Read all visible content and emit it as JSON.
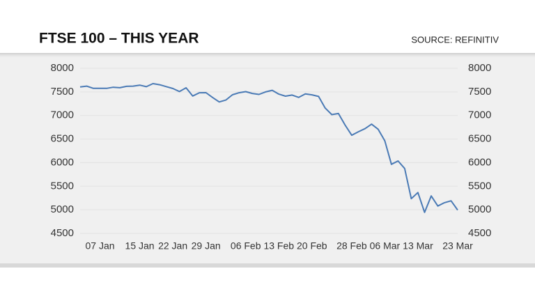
{
  "chart_data": {
    "type": "line",
    "title": "FTSE 100 – THIS YEAR",
    "source": "SOURCE: REFINITIV",
    "categories": [
      null,
      null,
      null,
      "07 Jan",
      null,
      null,
      null,
      null,
      null,
      "15 Jan",
      null,
      null,
      null,
      null,
      "22 Jan",
      null,
      null,
      null,
      null,
      "29 Jan",
      null,
      null,
      null,
      null,
      null,
      "06 Feb",
      null,
      null,
      null,
      null,
      "13 Feb",
      null,
      null,
      null,
      null,
      "20 Feb",
      null,
      null,
      null,
      null,
      null,
      "28 Feb",
      null,
      null,
      null,
      null,
      "06 Mar",
      null,
      null,
      null,
      null,
      "13 Mar",
      null,
      null,
      null,
      null,
      null,
      "23 Mar"
    ],
    "series": [
      {
        "name": "FTSE 100",
        "color": "#4a7ab5",
        "values": [
          7604,
          7622,
          7575,
          7574,
          7575,
          7598,
          7588,
          7617,
          7622,
          7642,
          7610,
          7675,
          7651,
          7611,
          7571,
          7507,
          7586,
          7412,
          7481,
          7483,
          7381,
          7286,
          7326,
          7439,
          7482,
          7505,
          7467,
          7446,
          7500,
          7534,
          7452,
          7409,
          7433,
          7382,
          7457,
          7437,
          7404,
          7157,
          7018,
          7042,
          6796,
          6581,
          6654,
          6719,
          6816,
          6706,
          6463,
          5965,
          6036,
          5876,
          5237,
          5367,
          4946,
          5294,
          5080,
          5151,
          5191,
          4994
        ]
      }
    ],
    "ylim": [
      4500,
      8000
    ],
    "yticks": [
      4500,
      5000,
      5500,
      6000,
      6500,
      7000,
      7500,
      8000
    ],
    "y2lim": [
      4500,
      8000
    ],
    "y2ticks": [
      4500,
      5000,
      5500,
      6000,
      6500,
      7000,
      7500,
      8000
    ],
    "grid": true
  }
}
